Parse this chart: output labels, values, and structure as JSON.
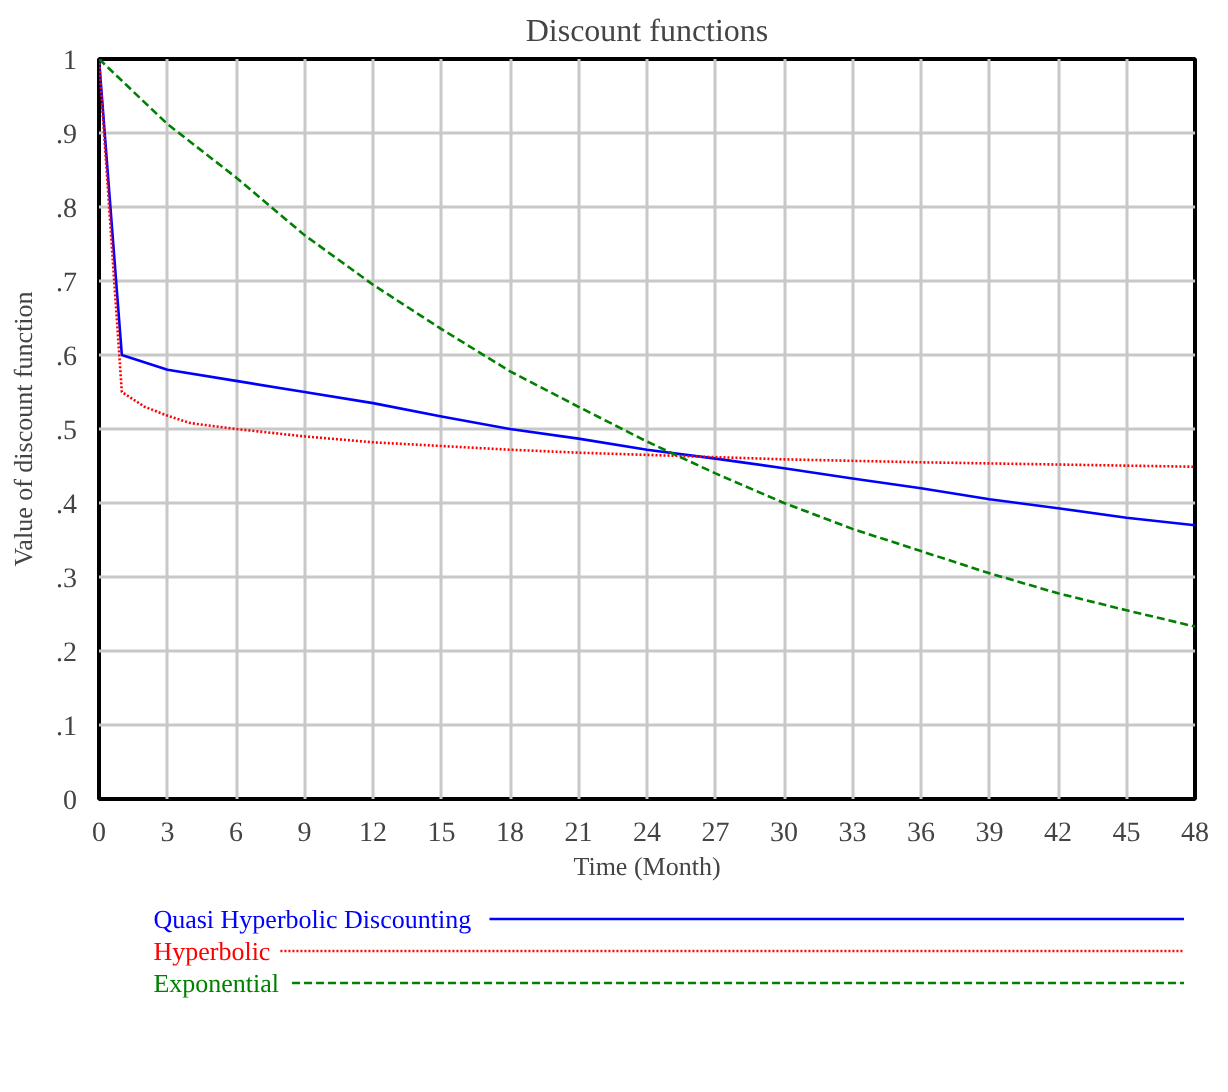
{
  "chart_data": {
    "type": "line",
    "title": "Discount functions",
    "xlabel": "Time (Month)",
    "ylabel": "Value of discount function",
    "xlim": [
      0,
      48
    ],
    "xticks": [
      0,
      3,
      6,
      9,
      12,
      15,
      18,
      21,
      24,
      27,
      30,
      33,
      36,
      39,
      42,
      45,
      48
    ],
    "ylim": [
      0,
      1
    ],
    "yticks": [
      {
        "value": 0,
        "label": "0"
      },
      {
        "value": 0.1,
        "label": ".1"
      },
      {
        "value": 0.2,
        "label": ".2"
      },
      {
        "value": 0.3,
        "label": ".3"
      },
      {
        "value": 0.4,
        "label": ".4"
      },
      {
        "value": 0.5,
        "label": ".5"
      },
      {
        "value": 0.6,
        "label": ".6"
      },
      {
        "value": 0.7,
        "label": ".7"
      },
      {
        "value": 0.8,
        "label": ".8"
      },
      {
        "value": 0.9,
        "label": ".9"
      },
      {
        "value": 1,
        "label": "1"
      }
    ],
    "grid": true,
    "legend": "bottom",
    "series": [
      {
        "name": "Quasi Hyperbolic Discounting",
        "color": "#0000ff",
        "line_style": "solid",
        "x": [
          0,
          1,
          3,
          6,
          9,
          12,
          15,
          18,
          21,
          24,
          27,
          30,
          33,
          36,
          39,
          42,
          45,
          48
        ],
        "values": [
          1,
          0.6,
          0.58,
          0.565,
          0.55,
          0.535,
          0.517,
          0.5,
          0.487,
          0.472,
          0.46,
          0.447,
          0.433,
          0.42,
          0.405,
          0.393,
          0.38,
          0.37
        ]
      },
      {
        "name": "Hyperbolic",
        "color": "#ff0000",
        "line_style": "dotted",
        "x": [
          0,
          1,
          2,
          3,
          4,
          6,
          9,
          12,
          15,
          18,
          21,
          24,
          27,
          30,
          36,
          42,
          48
        ],
        "values": [
          1,
          0.55,
          0.53,
          0.518,
          0.508,
          0.5,
          0.49,
          0.482,
          0.477,
          0.472,
          0.468,
          0.465,
          0.462,
          0.459,
          0.455,
          0.452,
          0.449
        ]
      },
      {
        "name": "Exponential",
        "color": "#008000",
        "line_style": "dashed",
        "x": [
          0,
          3,
          6,
          9,
          12,
          15,
          18,
          21,
          24,
          27,
          30,
          33,
          36,
          39,
          42,
          45,
          48
        ],
        "values": [
          1,
          0.912,
          0.84,
          0.762,
          0.695,
          0.635,
          0.578,
          0.53,
          0.483,
          0.44,
          0.4,
          0.365,
          0.335,
          0.305,
          0.278,
          0.255,
          0.233
        ]
      }
    ]
  }
}
